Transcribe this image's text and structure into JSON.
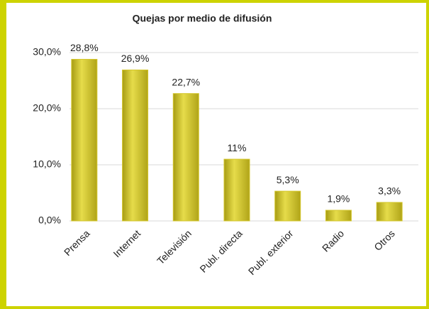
{
  "chart_data": {
    "type": "bar",
    "title": "Quejas por medio de difusión",
    "categories": [
      "Prensa",
      "Internet",
      "Televisión",
      "Publ. directa",
      "Publ. exterior",
      "Radio",
      "Otros"
    ],
    "values": [
      28.8,
      26.9,
      22.7,
      11,
      5.3,
      1.9,
      3.3
    ],
    "value_labels": [
      "28,8%",
      "26,9%",
      "22,7%",
      "11%",
      "5,3%",
      "1,9%",
      "3,3%"
    ],
    "color": "#d4c72c",
    "ylim": [
      0,
      30
    ],
    "yticks": [
      {
        "value": 0,
        "label": "0,0%"
      },
      {
        "value": 10,
        "label": "10,0%"
      },
      {
        "value": 20,
        "label": "20,0%"
      },
      {
        "value": 30,
        "label": "30,0%"
      }
    ],
    "grid": true
  }
}
